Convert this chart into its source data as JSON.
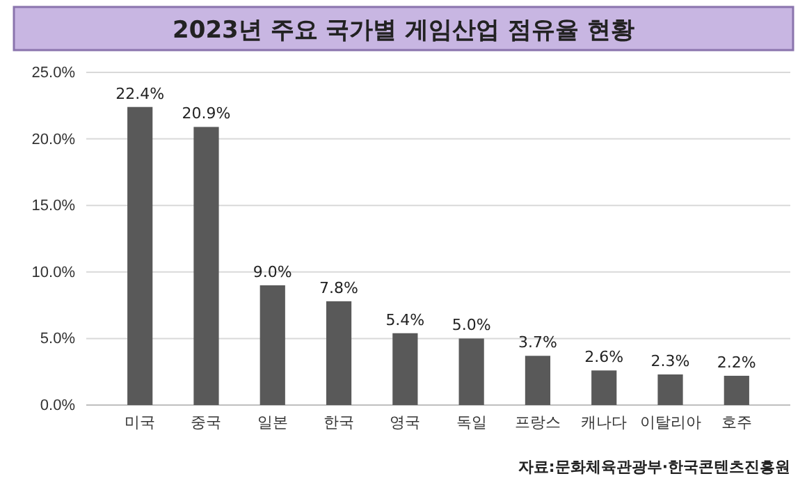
{
  "chart_data": {
    "type": "bar",
    "title": "2023년 주요 국가별 게임산업 점유율 현황",
    "categories": [
      "미국",
      "중국",
      "일본",
      "한국",
      "영국",
      "독일",
      "프랑스",
      "캐나다",
      "이탈리아",
      "호주"
    ],
    "values": [
      22.4,
      20.9,
      9.0,
      7.8,
      5.4,
      5.0,
      3.7,
      2.6,
      2.3,
      2.2
    ],
    "value_labels": [
      "22.4%",
      "20.9%",
      "9.0%",
      "7.8%",
      "5.4%",
      "5.0%",
      "3.7%",
      "2.6%",
      "2.3%",
      "2.2%"
    ],
    "color": "#595959",
    "ylim": [
      0,
      25
    ],
    "yticks": [
      {
        "value": 0,
        "label": "0.0%"
      },
      {
        "value": 5,
        "label": "5.0%"
      },
      {
        "value": 10,
        "label": "10.0%"
      },
      {
        "value": 15,
        "label": "15.0%"
      },
      {
        "value": 20,
        "label": "20.0%"
      },
      {
        "value": 25,
        "label": "25.0%"
      }
    ],
    "grid": "y",
    "annotations": [
      "자료:문화체육관광부·한국콘텐츠진흥원"
    ]
  }
}
